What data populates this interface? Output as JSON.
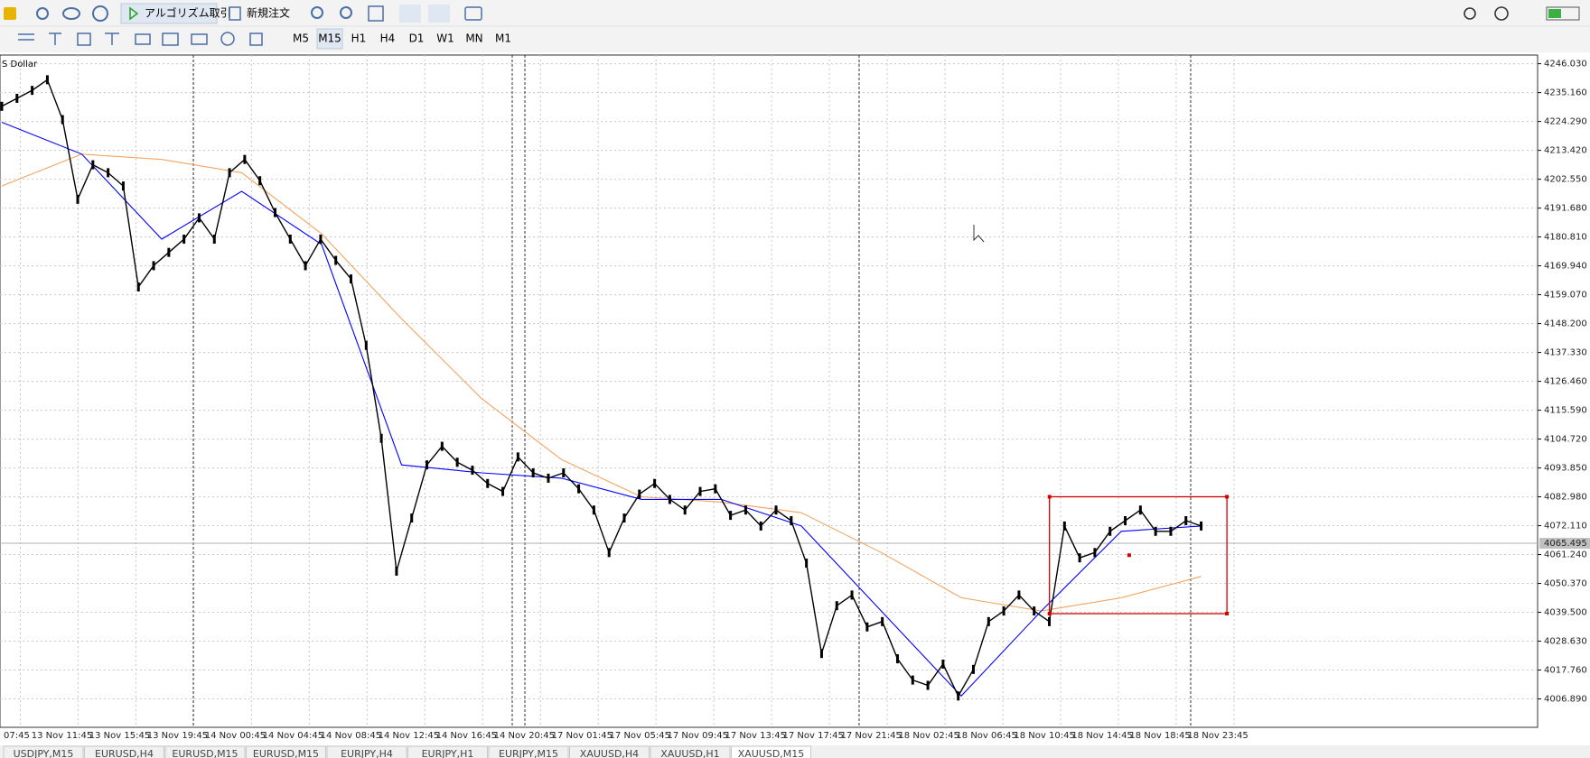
{
  "toolbar": {
    "algo_trading": "アルゴリズム取引",
    "new_order": "新規注文"
  },
  "timeframes": [
    "M5",
    "M15",
    "H1",
    "H4",
    "D1",
    "W1",
    "MN",
    "M1"
  ],
  "chart_data": {
    "type": "line",
    "title": "S Dollar",
    "ylim": [
      3996.2,
      4249.3
    ],
    "yticks": [
      {
        "value": 4246.03,
        "label": "4246.030"
      },
      {
        "value": 4235.16,
        "label": "4235.160"
      },
      {
        "value": 4224.29,
        "label": "4224.290"
      },
      {
        "value": 4213.42,
        "label": "4213.420"
      },
      {
        "value": 4202.55,
        "label": "4202.550"
      },
      {
        "value": 4191.68,
        "label": "4191.680"
      },
      {
        "value": 4180.81,
        "label": "4180.810"
      },
      {
        "value": 4169.94,
        "label": "4169.940"
      },
      {
        "value": 4159.07,
        "label": "4159.070"
      },
      {
        "value": 4148.2,
        "label": "4148.200"
      },
      {
        "value": 4137.33,
        "label": "4137.330"
      },
      {
        "value": 4126.46,
        "label": "4126.460"
      },
      {
        "value": 4115.59,
        "label": "4115.590"
      },
      {
        "value": 4104.72,
        "label": "4104.720"
      },
      {
        "value": 4093.85,
        "label": "4093.850"
      },
      {
        "value": 4082.98,
        "label": "4082.980"
      },
      {
        "value": 4072.11,
        "label": "4072.110"
      },
      {
        "value": 4061.24,
        "label": "4061.240"
      },
      {
        "value": 4050.37,
        "label": "4050.370"
      },
      {
        "value": 4039.5,
        "label": "4039.500"
      },
      {
        "value": 4028.63,
        "label": "4028.630"
      },
      {
        "value": 4017.76,
        "label": "4017.760"
      },
      {
        "value": 4006.89,
        "label": "4006.890"
      }
    ],
    "current_price": {
      "value": 4065.495,
      "label": "4065.495"
    },
    "x_labels": [
      "07:45",
      "13 Nov 11:45",
      "13 Nov 15:45",
      "13 Nov 19:45",
      "14 Nov 00:45",
      "14 Nov 04:45",
      "14 Nov 08:45",
      "14 Nov 12:45",
      "14 Nov 16:45",
      "14 Nov 20:45",
      "17 Nov 01:45",
      "17 Nov 05:45",
      "17 Nov 09:45",
      "17 Nov 13:45",
      "17 Nov 17:45",
      "17 Nov 21:45",
      "18 Nov 02:45",
      "18 Nov 06:45",
      "18 Nov 10:45",
      "18 Nov 14:45",
      "18 Nov 18:45",
      "18 Nov 23:45"
    ],
    "series": [
      {
        "color": "#000000",
        "values": [
          4230,
          4233,
          4236,
          4240,
          4225,
          4195,
          4208,
          4205,
          4200,
          4162,
          4170,
          4175,
          4180,
          4188,
          4180,
          4205,
          4210,
          4202,
          4190,
          4180,
          4170,
          4180,
          4172,
          4165,
          4140,
          4105,
          4055,
          4075,
          4095,
          4102,
          4096,
          4093,
          4088,
          4085,
          4098,
          4092,
          4090,
          4092,
          4086,
          4078,
          4062,
          4075,
          4084,
          4088,
          4082,
          4078,
          4085,
          4086,
          4076,
          4078,
          4072,
          4078,
          4074,
          4058,
          4024,
          4042,
          4046,
          4034,
          4036,
          4022,
          4014,
          4012,
          4020,
          4008,
          4018,
          4036,
          4040,
          4046,
          4040,
          4036,
          4072,
          4060,
          4062,
          4070,
          4074,
          4078,
          4070,
          4070,
          4074,
          4072
        ]
      },
      {
        "color": "#0000ff",
        "values": [
          4224,
          4212,
          4180,
          4198,
          4178,
          4095,
          4092,
          4090,
          4082,
          4082,
          4072,
          4040,
          4008,
          4040,
          4070,
          4072
        ]
      },
      {
        "color": "#f4a460",
        "values": [
          4200,
          4212,
          4210,
          4205,
          4182,
          4150,
          4120,
          4097,
          4083,
          4081,
          4077,
          4062,
          4045,
          4040,
          4045,
          4053
        ]
      }
    ],
    "box": {
      "top": 4083,
      "bottom": 4039,
      "color": "#d00000"
    }
  },
  "tabs": [
    "USDJPY,M15",
    "EURUSD,H4",
    "EURUSD,M15",
    "EURUSD,M15",
    "EURJPY,H4",
    "EURJPY,H1",
    "EURJPY,M15",
    "XAUUSD,H4",
    "XAUUSD,H1",
    "XAUUSD,M15"
  ]
}
